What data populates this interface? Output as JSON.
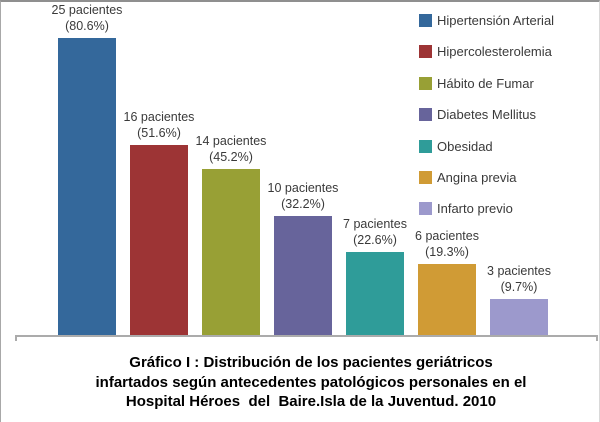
{
  "figure": {
    "background": "#ffffff",
    "border_color": "#8f8f8f",
    "axis_color": "#ababab",
    "label_text_color": "#3a3a3a"
  },
  "chart_data": {
    "type": "bar",
    "title": "Gráfico I : Distribución de los pacientes geriátricos infartados según antecedentes patológicos personales en el Hospital Héroes  del  Baire.Isla de la Juventud. 2010",
    "categories": [
      "Hipertensión Arterial",
      "Hipercolesterolemia",
      "Hábito de Fumar",
      "Diabetes Mellitus",
      "Obesidad",
      "Angina previa",
      "Infarto previo"
    ],
    "values": [
      25,
      16,
      14,
      10,
      7,
      6,
      3
    ],
    "percentages": [
      80.6,
      51.6,
      45.2,
      32.2,
      22.6,
      19.3,
      9.7
    ],
    "count_labels": [
      "25 pacientes",
      "16 pacientes",
      "14 pacientes",
      "10 pacientes",
      "7 pacientes",
      "6 pacientes",
      "3 pacientes"
    ],
    "percent_labels": [
      "(80.6%)",
      "(51.6%)",
      "(45.2%)",
      "(32.2%)",
      "(22.6%)",
      "(19.3%)",
      "(9.7%)"
    ],
    "colors": [
      "#34689B",
      "#9D3435",
      "#98A035",
      "#67649B",
      "#2F9C99",
      "#D09B35",
      "#9C99CC"
    ],
    "xlabel": "",
    "ylabel": "",
    "ylim": [
      0,
      25
    ],
    "grid": false,
    "legend_position": "top-right"
  },
  "legend": {
    "items": [
      {
        "label": "Hipertensión Arterial",
        "color": "#34689B"
      },
      {
        "label": "Hipercolesterolemia",
        "color": "#9D3435"
      },
      {
        "label": "Hábito de Fumar",
        "color": "#98A035"
      },
      {
        "label": "Diabetes Mellitus",
        "color": "#67649B"
      },
      {
        "label": "Obesidad",
        "color": "#2F9C99"
      },
      {
        "label": "Angina previa",
        "color": "#D09B35"
      },
      {
        "label": "Infarto previo",
        "color": "#9C99CC"
      }
    ]
  },
  "caption": {
    "text": "Gráfico I : Distribución de los pacientes geriátricos\ninfartados según antecedentes patológicos personales en el\nHospital Héroes  del  Baire.Isla de la Juventud. 2010"
  }
}
